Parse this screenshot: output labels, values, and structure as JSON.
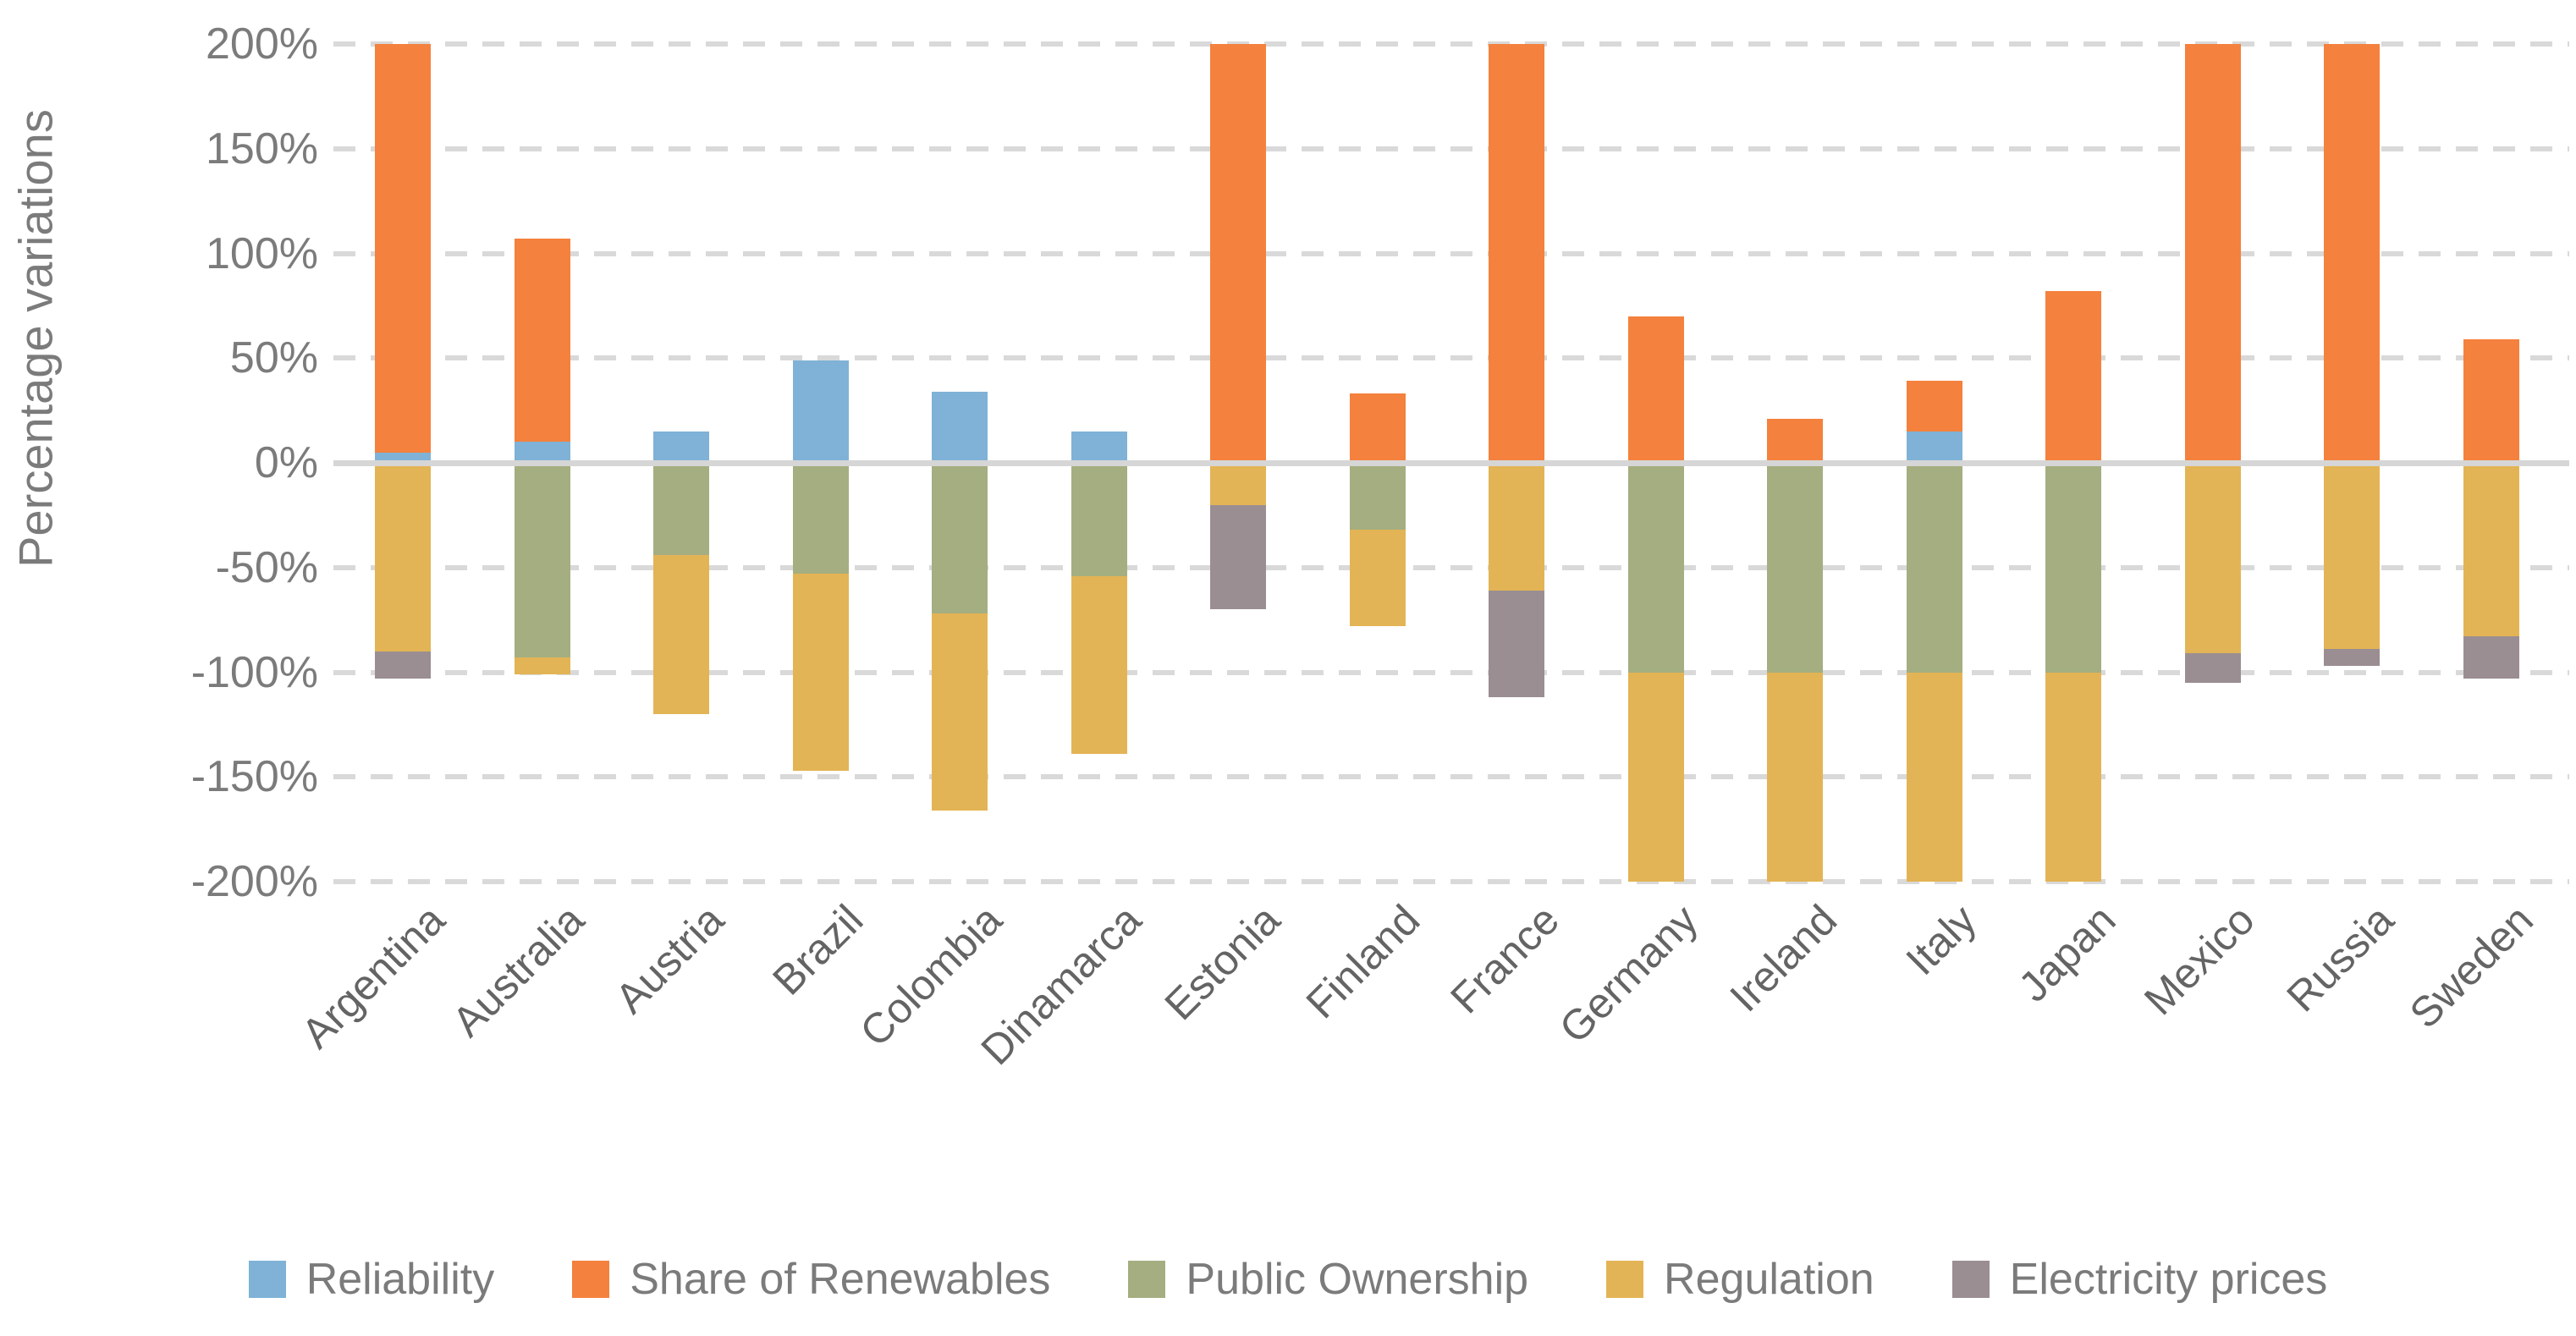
{
  "chart_data": {
    "type": "bar",
    "stacked": true,
    "title": "",
    "xlabel": "",
    "ylabel": "Percentage variations",
    "ylim": [
      -200,
      200
    ],
    "ytick_step": 50,
    "yticks": [
      "200%",
      "150%",
      "100%",
      "50%",
      "0%",
      "-50%",
      "-100%",
      "-150%",
      "-200%"
    ],
    "grid": "horizontal-dashed",
    "legend_position": "bottom",
    "categories": [
      "Argentina",
      "Australia",
      "Austria",
      "Brazil",
      "Colombia",
      "Dinamarca",
      "Estonia",
      "Finland",
      "France",
      "Germany",
      "Ireland",
      "Italy",
      "Japan",
      "Mexico",
      "Russia",
      "Sweden"
    ],
    "series": [
      {
        "name": "Reliability",
        "color": "#7FB2D6",
        "values": [
          5,
          10,
          15,
          49,
          34,
          15,
          0,
          0,
          0,
          0,
          0,
          15,
          0,
          0,
          0,
          0
        ]
      },
      {
        "name": "Share of Renewables",
        "color": "#F4813D",
        "values": [
          195,
          97,
          0,
          0,
          0,
          0,
          200,
          33,
          200,
          70,
          21,
          24,
          82,
          200,
          200,
          59
        ]
      },
      {
        "name": "Public Ownership",
        "color": "#A4AE80",
        "values": [
          0,
          -93,
          -44,
          -53,
          -72,
          -54,
          0,
          -32,
          0,
          -100,
          -100,
          -100,
          -100,
          0,
          0,
          0
        ]
      },
      {
        "name": "Regulation",
        "color": "#E3B455",
        "values": [
          -90,
          -8,
          -76,
          -94,
          -94,
          -85,
          -20,
          -46,
          -61,
          -100,
          -100,
          -100,
          -100,
          -91,
          -89,
          -83
        ]
      },
      {
        "name": "Electricity prices",
        "color": "#9A8E92",
        "values": [
          -13,
          0,
          0,
          0,
          0,
          0,
          -50,
          0,
          -51,
          0,
          0,
          0,
          0,
          -14,
          -8,
          -20
        ]
      }
    ],
    "colors": {
      "grid": "#D9D9D9",
      "zero_line": "#D6D6D6",
      "axis_text": "#7B7B7B",
      "category_text": "#646464"
    }
  }
}
